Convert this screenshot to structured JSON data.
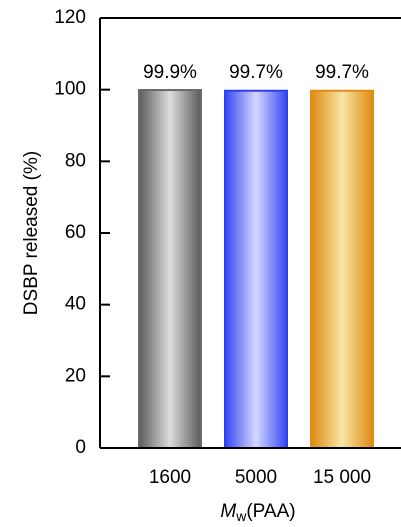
{
  "chart_data": {
    "type": "bar",
    "categories": [
      "1600",
      "5000",
      "15 000"
    ],
    "values": [
      99.9,
      99.7,
      99.7
    ],
    "data_labels": [
      "99.9%",
      "99.7%",
      "99.7%"
    ],
    "ylabel": "DSBP released (%)",
    "xlabel": {
      "main": "M",
      "subscript": "w",
      "suffix": "(PAA)"
    },
    "ylim": [
      0,
      120
    ],
    "yticks": [
      0,
      20,
      40,
      60,
      80,
      100,
      120
    ],
    "grid": false,
    "bar_colors": [
      {
        "edge": "#6a6a6a",
        "dark": "#5c5c5c",
        "light": "#dcdcdc"
      },
      {
        "edge": "#2e3ff0",
        "dark": "#3446f2",
        "light": "#d4d8ff"
      },
      {
        "edge": "#df8d16",
        "dark": "#de8a12",
        "light": "#f8e6a6"
      }
    ]
  }
}
